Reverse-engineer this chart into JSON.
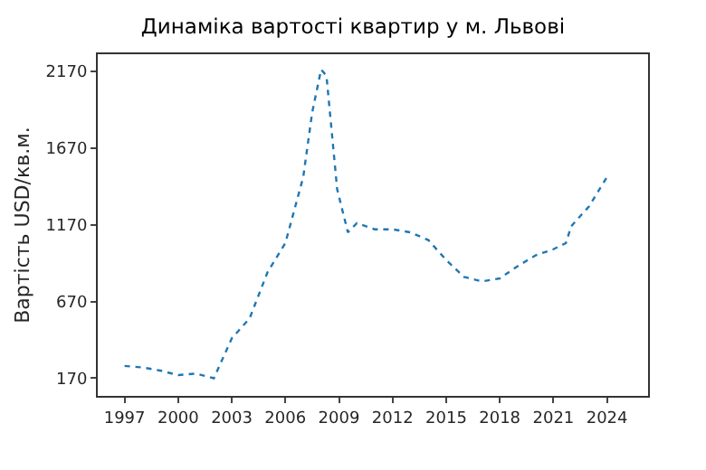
{
  "chart_data": {
    "type": "line",
    "title": "Динаміка вартості квартир у м. Львові",
    "ylabel": "Вартість USD/кв.м.",
    "x": [
      1997,
      1998,
      1999,
      2000,
      2001,
      2002,
      2003,
      2004,
      2005,
      2006,
      2007,
      2007.5,
      2008,
      2008.3,
      2008.9,
      2009.5,
      2010,
      2011,
      2012,
      2013,
      2014,
      2015,
      2016,
      2017,
      2018,
      2019,
      2020,
      2021,
      2021.7,
      2022,
      2023,
      2024
    ],
    "series": [
      {
        "color": "#1f77b4",
        "values": [
          250,
          240,
          220,
          190,
          200,
          170,
          430,
          560,
          860,
          1050,
          1480,
          1900,
          2180,
          2140,
          1400,
          1120,
          1180,
          1140,
          1140,
          1120,
          1070,
          940,
          830,
          800,
          820,
          900,
          970,
          1010,
          1050,
          1160,
          1290,
          1480
        ]
      }
    ],
    "xlim": [
      1995.5,
      2026.3
    ],
    "xticks": [
      1997,
      2000,
      2003,
      2006,
      2009,
      2012,
      2015,
      2018,
      2021,
      2024
    ],
    "ylim": [
      55,
      2280
    ],
    "yticks": [
      170,
      670,
      1170,
      1670,
      2170
    ],
    "grid": false,
    "marker": "none",
    "line_style": "dotted"
  }
}
